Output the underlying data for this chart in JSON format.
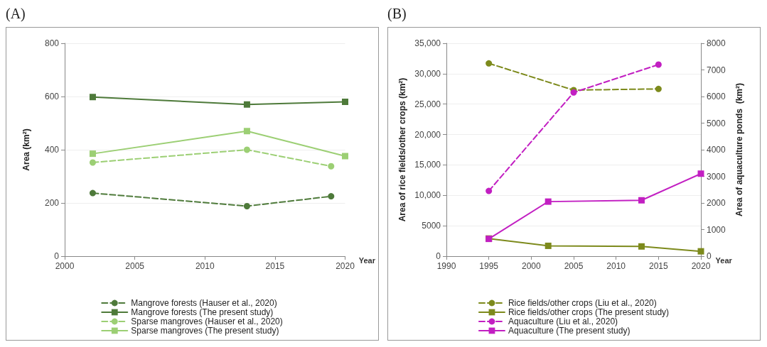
{
  "chart_data": [
    {
      "type": "line",
      "title": "(A)",
      "xlabel": "Year",
      "ylabel": "Area (km²)",
      "xlim": [
        2000,
        2020
      ],
      "xticks": [
        2000,
        2005,
        2010,
        2015,
        2020
      ],
      "ylim": [
        0,
        800
      ],
      "yticks": [
        0,
        200,
        400,
        600,
        800
      ],
      "grid": "y",
      "legend": "bottom",
      "series": [
        {
          "name": "Mangrove forests (Hauser et al., 2020)",
          "color": "#4e7a3a",
          "marker": "circle",
          "line_style": "dashed",
          "x": [
            2002,
            2013,
            2019
          ],
          "values": [
            237,
            188,
            225
          ]
        },
        {
          "name": "Mangrove forests (The present study)",
          "color": "#4e7a3a",
          "marker": "square",
          "line_style": "solid",
          "x": [
            2002,
            2013,
            2020
          ],
          "values": [
            598,
            570,
            580
          ]
        },
        {
          "name": "Sparse mangroves (Hauser et al., 2020)",
          "color": "#9ccf74",
          "marker": "circle",
          "line_style": "dashed",
          "x": [
            2002,
            2013,
            2019
          ],
          "values": [
            352,
            400,
            338
          ]
        },
        {
          "name": "Sparse mangroves (The present study)",
          "color": "#9ccf74",
          "marker": "square",
          "line_style": "solid",
          "x": [
            2002,
            2013,
            2020
          ],
          "values": [
            385,
            470,
            376
          ]
        }
      ]
    },
    {
      "type": "line",
      "title": "(B)",
      "xlabel": "Year",
      "ylabel": "Area of rice fields/other crops (km²)",
      "y2label": "Area of aquaculture ponds  (km²)",
      "xlim": [
        1990,
        2020
      ],
      "xticks": [
        1990,
        1995,
        2000,
        2005,
        2010,
        2015,
        2020
      ],
      "ylim": [
        0,
        35000
      ],
      "yticks": [
        0,
        5000,
        {
          "value": 10000,
          "label": "10,000"
        },
        {
          "value": 15000,
          "label": "15,000"
        },
        {
          "value": 20000,
          "label": "20,000"
        },
        {
          "value": 25000,
          "label": "25,000"
        },
        {
          "value": 30000,
          "label": "30,000"
        },
        {
          "value": 35000,
          "label": "35,000"
        }
      ],
      "y2lim": [
        0,
        8000
      ],
      "y2ticks": [
        0,
        1000,
        2000,
        3000,
        4000,
        5000,
        6000,
        7000,
        8000
      ],
      "grid": "y",
      "legend": "bottom",
      "series": [
        {
          "name": "Rice fields/other crops (Liu et al., 2020)",
          "color": "#7d8a1c",
          "marker": "circle",
          "line_style": "dashed",
          "x": [
            1995,
            2005,
            2015
          ],
          "values": [
            31700,
            27300,
            27500
          ]
        },
        {
          "name": "Rice fields/other crops (The present study)",
          "color": "#7d8a1c",
          "marker": "square",
          "line_style": "solid",
          "x": [
            1995,
            2002,
            2013,
            2020
          ],
          "values": [
            2900,
            1700,
            1600,
            800
          ]
        },
        {
          "name": "Aquaculture (Liu et al., 2020)",
          "color": "#c21fc2",
          "marker": "circle",
          "line_style": "dashed",
          "axis": "y2",
          "x": [
            1995,
            2005,
            2015
          ],
          "values": [
            2450,
            6150,
            7200
          ]
        },
        {
          "name": "Aquaculture (The present study)",
          "color": "#c21fc2",
          "marker": "square",
          "line_style": "solid",
          "axis": "y2",
          "x": [
            1995,
            2002,
            2013,
            2020
          ],
          "values": [
            650,
            2050,
            2100,
            3100
          ]
        }
      ]
    }
  ]
}
